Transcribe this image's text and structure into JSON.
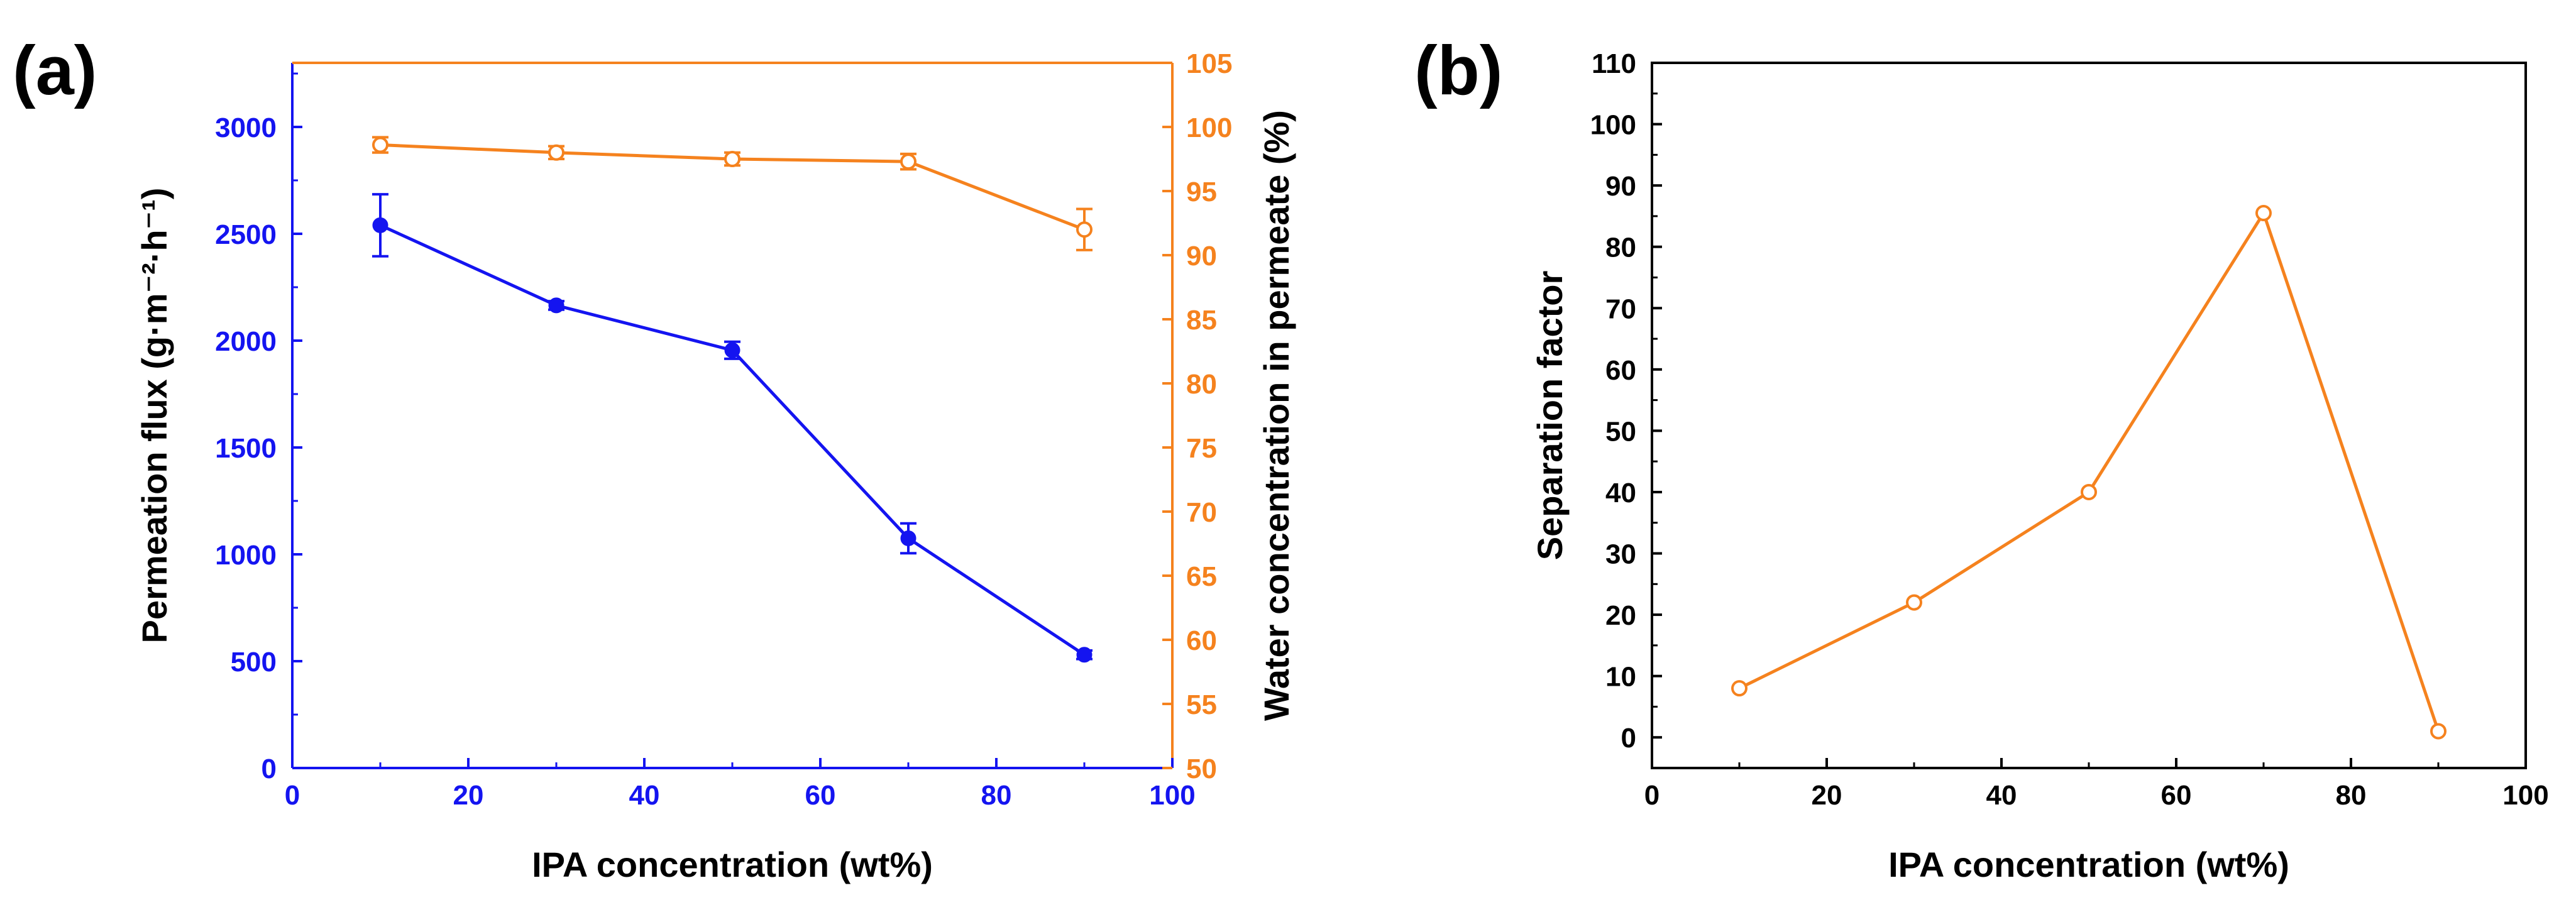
{
  "panel_labels": {
    "a": "(a)",
    "b": "(b)"
  },
  "colors": {
    "blue": "#1414F0",
    "orange": "#F5821E",
    "black": "#000000"
  },
  "chart_data": [
    {
      "id": "a",
      "type": "line",
      "title": "",
      "xlabel": "IPA concentration (wt%)",
      "ylabel_left": "Permeation flux (g·m⁻²·h⁻¹)",
      "ylabel_right": "Water concentration in permeate (%)",
      "xlim": [
        0,
        100
      ],
      "ylim_left": [
        0,
        3300
      ],
      "ylim_right": [
        50,
        105
      ],
      "x_ticks": [
        0,
        20,
        40,
        60,
        80,
        100
      ],
      "y_left_ticks": [
        0,
        500,
        1000,
        1500,
        2000,
        2500,
        3000
      ],
      "y_right_ticks": [
        50,
        55,
        60,
        65,
        70,
        75,
        80,
        85,
        90,
        95,
        100,
        105
      ],
      "series": [
        {
          "name": "Permeation flux",
          "axis": "left",
          "marker": "filled-circle",
          "x": [
            10,
            30,
            50,
            70,
            90
          ],
          "values": [
            2540,
            2165,
            1955,
            1075,
            530
          ],
          "errors": [
            145,
            20,
            40,
            70,
            20
          ]
        },
        {
          "name": "Water concentration in permeate",
          "axis": "right",
          "marker": "open-circle",
          "x": [
            10,
            30,
            50,
            70,
            90
          ],
          "values": [
            98.6,
            98.0,
            97.5,
            97.3,
            92.0
          ],
          "errors": [
            0.6,
            0.5,
            0.5,
            0.6,
            1.6
          ]
        }
      ]
    },
    {
      "id": "b",
      "type": "line",
      "title": "",
      "xlabel": "IPA concentration (wt%)",
      "ylabel": "Separation factor",
      "xlim": [
        0,
        100
      ],
      "ylim": [
        -5,
        110
      ],
      "x_ticks": [
        0,
        20,
        40,
        60,
        80,
        100
      ],
      "y_ticks": [
        0,
        10,
        20,
        30,
        40,
        50,
        60,
        70,
        80,
        90,
        100,
        110
      ],
      "series": [
        {
          "name": "Separation factor",
          "marker": "open-circle",
          "x": [
            10,
            30,
            50,
            70,
            90
          ],
          "values": [
            8,
            22,
            40,
            85.5,
            1
          ]
        }
      ]
    }
  ]
}
